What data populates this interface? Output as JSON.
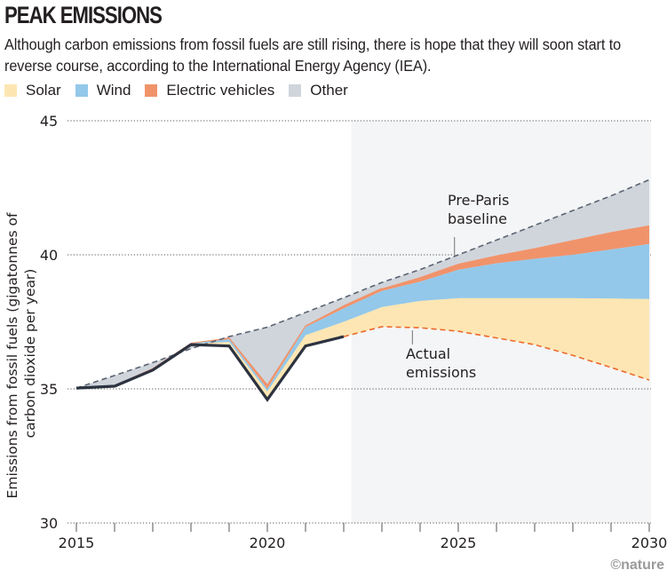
{
  "header": {
    "title": "PEAK EMISSIONS",
    "subtitle": "Although carbon emissions from fossil fuels are still rising, there is hope that they will soon start to reverse course, according to the International Energy Agency (IEA)."
  },
  "legend": [
    {
      "label": "Solar",
      "color": "#fde6b3"
    },
    {
      "label": "Wind",
      "color": "#93c8ea"
    },
    {
      "label": "Electric vehicles",
      "color": "#f0936b"
    },
    {
      "label": "Other",
      "color": "#d0d5dc"
    }
  ],
  "credit": "©nature",
  "chart_data": {
    "type": "area",
    "title": "PEAK EMISSIONS",
    "xlabel": "",
    "ylabel": "Emissions from fossil fuels (gigatonnes of carbon dioxide per year)",
    "ylabel_lines": [
      "Emissions from fossil fuels (gigatonnes of",
      "carbon dioxide per year)"
    ],
    "xlim": [
      2015,
      2030
    ],
    "ylim": [
      30,
      45
    ],
    "x_ticks": [
      2015,
      2020,
      2025,
      2030
    ],
    "y_ticks": [
      30,
      35,
      40,
      45
    ],
    "grid": "horizontal-dotted",
    "projection_start": 2022.2,
    "x": [
      2015,
      2016,
      2017,
      2018,
      2019,
      2020,
      2021,
      2022,
      2023,
      2024,
      2025,
      2026,
      2027,
      2028,
      2029,
      2030
    ],
    "series": [
      {
        "name": "Actual emissions",
        "style": "line",
        "values": [
          35.03,
          35.1,
          35.7,
          36.65,
          36.6,
          34.6,
          36.6,
          36.95,
          37.32,
          37.28,
          37.15,
          36.9,
          36.65,
          36.25,
          35.8,
          35.33
        ]
      },
      {
        "name": "Solar",
        "stack_top": [
          35.03,
          35.1,
          35.72,
          36.68,
          36.75,
          34.9,
          37.0,
          37.5,
          38.05,
          38.28,
          38.38,
          38.38,
          38.38,
          38.38,
          38.37,
          38.35
        ]
      },
      {
        "name": "Wind",
        "stack_top": [
          35.03,
          35.12,
          35.75,
          36.7,
          36.85,
          35.0,
          37.3,
          38.0,
          38.65,
          39.0,
          39.44,
          39.68,
          39.85,
          40.0,
          40.2,
          40.4
        ]
      },
      {
        "name": "Electric vehicles",
        "stack_top": [
          35.03,
          35.12,
          35.76,
          36.7,
          36.9,
          35.15,
          37.35,
          38.1,
          38.75,
          39.17,
          39.67,
          39.98,
          40.25,
          40.55,
          40.85,
          41.1
        ]
      },
      {
        "name": "Other",
        "stack_top": [
          35.03,
          35.5,
          35.98,
          36.5,
          36.95,
          37.3,
          37.85,
          38.4,
          38.97,
          39.45,
          40.0,
          40.55,
          41.1,
          41.65,
          42.2,
          42.8
        ]
      },
      {
        "name": "Pre-Paris baseline",
        "style": "dashed-line",
        "values": [
          35.03,
          35.5,
          35.98,
          36.5,
          36.95,
          37.3,
          37.85,
          38.4,
          38.97,
          39.45,
          40.0,
          40.55,
          41.1,
          41.65,
          42.2,
          42.8
        ]
      }
    ],
    "annotations": [
      {
        "text_lines": [
          "Pre-Paris",
          "baseline"
        ],
        "x": 2024.9,
        "y": 40.0
      },
      {
        "text_lines": [
          "Actual",
          "emissions"
        ],
        "x": 2023.8,
        "y": 37.25
      }
    ]
  }
}
